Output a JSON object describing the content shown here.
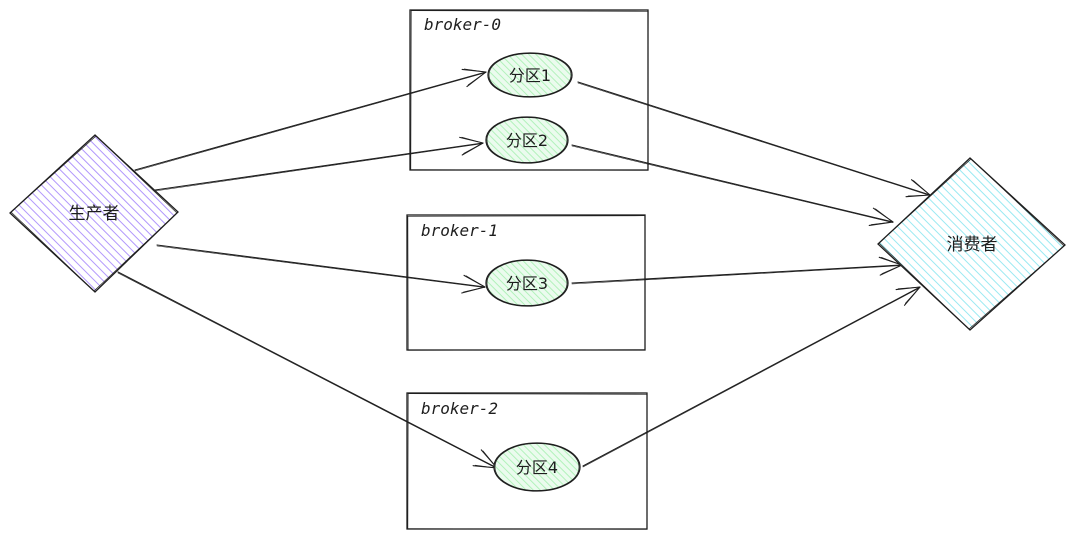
{
  "producer": {
    "label": "生产者",
    "color": "#d0bfff",
    "stroke": "#5f3dc4"
  },
  "consumer": {
    "label": "消费者",
    "color": "#99e9f2",
    "stroke": "#0c8599"
  },
  "partition_color": "#b2f2bb",
  "brokers": [
    {
      "id": "broker-0",
      "label": "broker-0",
      "partitions": [
        {
          "id": "p1",
          "label": "分区1"
        },
        {
          "id": "p2",
          "label": "分区2"
        }
      ]
    },
    {
      "id": "broker-1",
      "label": "broker-1",
      "partitions": [
        {
          "id": "p3",
          "label": "分区3"
        }
      ]
    },
    {
      "id": "broker-2",
      "label": "broker-2",
      "partitions": [
        {
          "id": "p4",
          "label": "分区4"
        }
      ]
    }
  ],
  "edges": [
    {
      "from": "producer",
      "to": "p1"
    },
    {
      "from": "producer",
      "to": "p2"
    },
    {
      "from": "producer",
      "to": "p3"
    },
    {
      "from": "producer",
      "to": "p4"
    },
    {
      "from": "p1",
      "to": "consumer"
    },
    {
      "from": "p2",
      "to": "consumer"
    },
    {
      "from": "p3",
      "to": "consumer"
    },
    {
      "from": "p4",
      "to": "consumer"
    }
  ]
}
